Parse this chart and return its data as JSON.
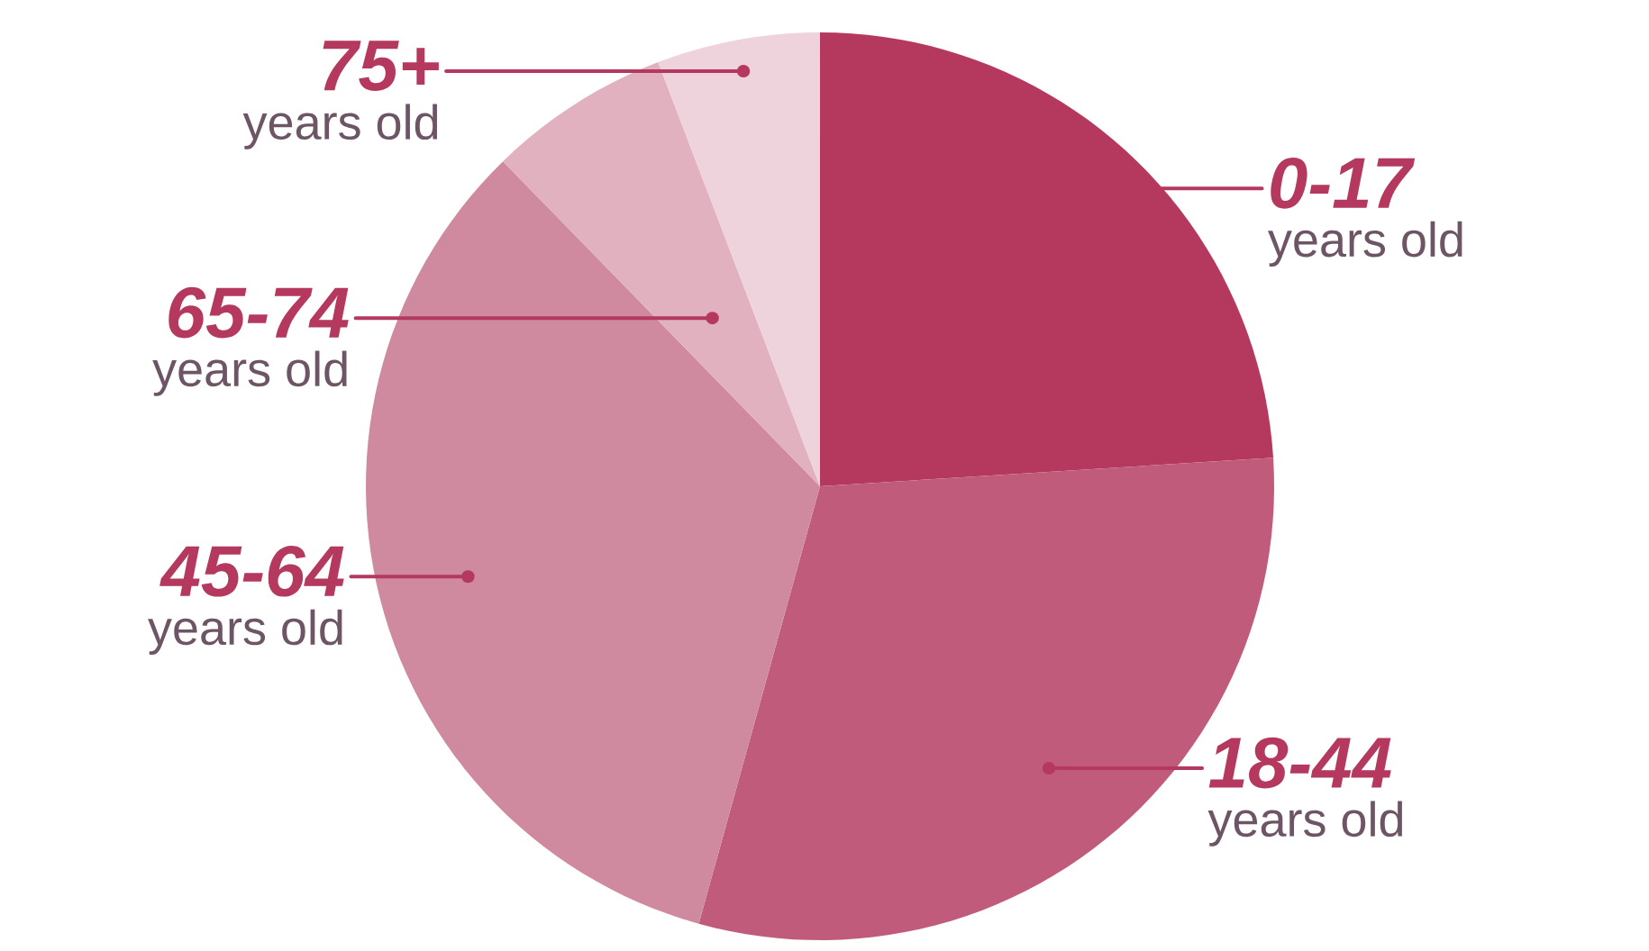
{
  "chart_data": {
    "type": "pie",
    "categories": [
      "0-17",
      "18-44",
      "45-64",
      "65-74",
      "75+"
    ],
    "values": [
      24,
      30.3,
      33.4,
      6.5,
      5.8
    ],
    "colors": [
      "#b5395f",
      "#c15b7b",
      "#d08aa0",
      "#e1b1c0",
      "#efd3dc"
    ],
    "annotations": [
      "years old",
      "years old",
      "years old",
      "years old",
      "years old"
    ]
  }
}
